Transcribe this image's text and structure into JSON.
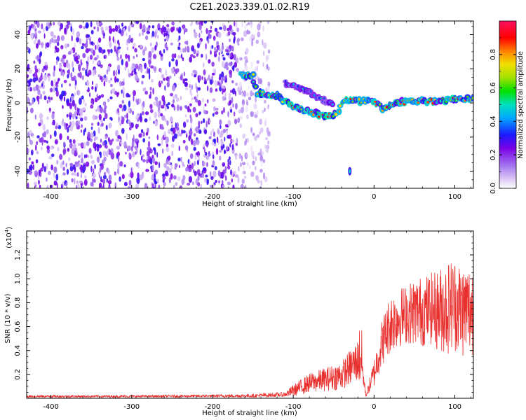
{
  "title": "C2E1.2023.339.01.02.R19",
  "colors": {
    "snr_line": "#e8302e",
    "background": "#ffffff",
    "colormap": [
      "#ffffff",
      "#d9c2f5",
      "#a070ef",
      "#7a00e6",
      "#1a1aff",
      "#00a8ff",
      "#00e0c0",
      "#00e000",
      "#a0e000",
      "#f0e000",
      "#ff8000",
      "#ff0000",
      "#ff1060"
    ]
  },
  "chart_data": [
    {
      "type": "heatmap",
      "name": "spectrogram",
      "xlabel": "Height of straight line (km)",
      "ylabel": "Frequency (Hz)",
      "xlim": [
        -430,
        123
      ],
      "ylim": [
        -50,
        48
      ],
      "xticks": [
        -400,
        -300,
        -200,
        -100,
        0,
        100
      ],
      "xtick_labels": [
        "-400",
        "-300",
        "-200",
        "-100",
        "0",
        "100"
      ],
      "yticks": [
        -40,
        -20,
        0,
        20,
        40
      ],
      "ytick_labels": [
        "-40",
        "-20",
        "0",
        "20",
        "40"
      ],
      "colorbar": {
        "label": "Normalized spectral amplitude",
        "range": [
          0,
          1
        ],
        "ticks": [
          0.0,
          0.2,
          0.4,
          0.6,
          0.8
        ],
        "tick_labels": [
          "0.0",
          "0.2",
          "0.4",
          "0.6",
          "0.8"
        ]
      },
      "features": [
        {
          "name": "broadband noise",
          "x_range": [
            -430,
            -170
          ],
          "freq_range": [
            -50,
            48
          ],
          "amplitude": 0.25
        },
        {
          "name": "sparse noise",
          "x_range": [
            -170,
            -130
          ],
          "freq_range": [
            -50,
            48
          ],
          "amplitude": 0.12
        },
        {
          "name": "carrier track",
          "points": [
            [
              -165,
              16
            ],
            [
              -150,
              16
            ],
            [
              -145,
              6
            ],
            [
              -120,
              4
            ],
            [
              -100,
              -2
            ],
            [
              -80,
              -5
            ],
            [
              -60,
              -8
            ],
            [
              -45,
              -6
            ],
            [
              -38,
              2
            ],
            [
              -30,
              2
            ],
            [
              -20,
              1
            ],
            [
              0,
              1
            ],
            [
              10,
              -3
            ],
            [
              25,
              0
            ],
            [
              50,
              1
            ],
            [
              75,
              1
            ],
            [
              100,
              2
            ],
            [
              123,
              3
            ]
          ],
          "amplitude": 0.85
        },
        {
          "name": "upper branch",
          "points": [
            [
              -110,
              12
            ],
            [
              -95,
              9
            ],
            [
              -80,
              6
            ],
            [
              -65,
              2
            ],
            [
              -50,
              -1
            ]
          ],
          "amplitude": 0.5
        },
        {
          "name": "lower spur",
          "points": [
            [
              -30,
              -40
            ]
          ],
          "amplitude": 0.5
        }
      ]
    },
    {
      "type": "line",
      "name": "snr",
      "xlabel": "Height of straight line (km)",
      "ylabel": "SNR (10 * v/v)",
      "y_scale_label": "(x10",
      "y_scale_exponent": "4",
      "y_scale_suffix": ")",
      "xlim": [
        -430,
        123
      ],
      "ylim": [
        0,
        1.4
      ],
      "xticks": [
        -400,
        -300,
        -200,
        -100,
        0,
        100
      ],
      "xtick_labels": [
        "-400",
        "-300",
        "-200",
        "-100",
        "0",
        "100"
      ],
      "yticks": [
        0.2,
        0.4,
        0.6,
        0.8,
        1.0,
        1.2
      ],
      "ytick_labels": [
        "0.2",
        "0.4",
        "0.6",
        "0.8",
        "1.0",
        "1.2"
      ],
      "series": [
        {
          "name": "SNR envelope",
          "x": [
            -430,
            -300,
            -200,
            -150,
            -110,
            -100,
            -80,
            -60,
            -40,
            -30,
            -20,
            -16,
            -14,
            -10,
            0,
            10,
            20,
            30,
            40,
            50,
            60,
            70,
            80,
            90,
            100,
            110,
            123
          ],
          "mean": [
            0.015,
            0.015,
            0.018,
            0.02,
            0.03,
            0.06,
            0.12,
            0.15,
            0.18,
            0.24,
            0.3,
            0.35,
            0.2,
            0.02,
            0.2,
            0.45,
            0.6,
            0.65,
            0.68,
            0.7,
            0.7,
            0.72,
            0.7,
            0.72,
            0.75,
            0.7,
            0.7
          ],
          "amp": [
            0.01,
            0.01,
            0.012,
            0.015,
            0.02,
            0.05,
            0.08,
            0.1,
            0.12,
            0.15,
            0.18,
            0.35,
            0.1,
            0.01,
            0.12,
            0.2,
            0.25,
            0.25,
            0.25,
            0.28,
            0.3,
            0.3,
            0.35,
            0.4,
            0.4,
            0.4,
            0.4
          ]
        }
      ]
    }
  ]
}
